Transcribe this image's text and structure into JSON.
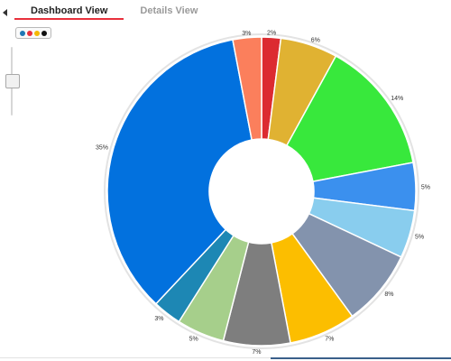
{
  "tabs": [
    {
      "label": "Dashboard View",
      "active": true
    },
    {
      "label": "Details View",
      "active": false
    }
  ],
  "palette_colors": [
    "#1f77b4",
    "#e8303c",
    "#f5b800",
    "#111111"
  ],
  "chart_data": {
    "type": "pie",
    "donut": true,
    "title": "",
    "start": "top",
    "direction": "clockwise",
    "slices": [
      {
        "label": "2%",
        "value": 2,
        "color": "#dc2b31"
      },
      {
        "label": "6%",
        "value": 6,
        "color": "#e0b232"
      },
      {
        "label": "14%",
        "value": 14,
        "color": "#38e83c"
      },
      {
        "label": "5%",
        "value": 5,
        "color": "#3b90ee"
      },
      {
        "label": "5%",
        "value": 5,
        "color": "#89cdee"
      },
      {
        "label": "8%",
        "value": 8,
        "color": "#8393ad"
      },
      {
        "label": "7%",
        "value": 7,
        "color": "#fcbe00"
      },
      {
        "label": "7%",
        "value": 7,
        "color": "#7e7e7e"
      },
      {
        "label": "5%",
        "value": 5,
        "color": "#a6cf8b"
      },
      {
        "label": "3%",
        "value": 3,
        "color": "#1d87b4"
      },
      {
        "label": "35%",
        "value": 35,
        "color": "#0271de"
      },
      {
        "label": "3%",
        "value": 3,
        "color": "#fb7f5c"
      }
    ]
  }
}
